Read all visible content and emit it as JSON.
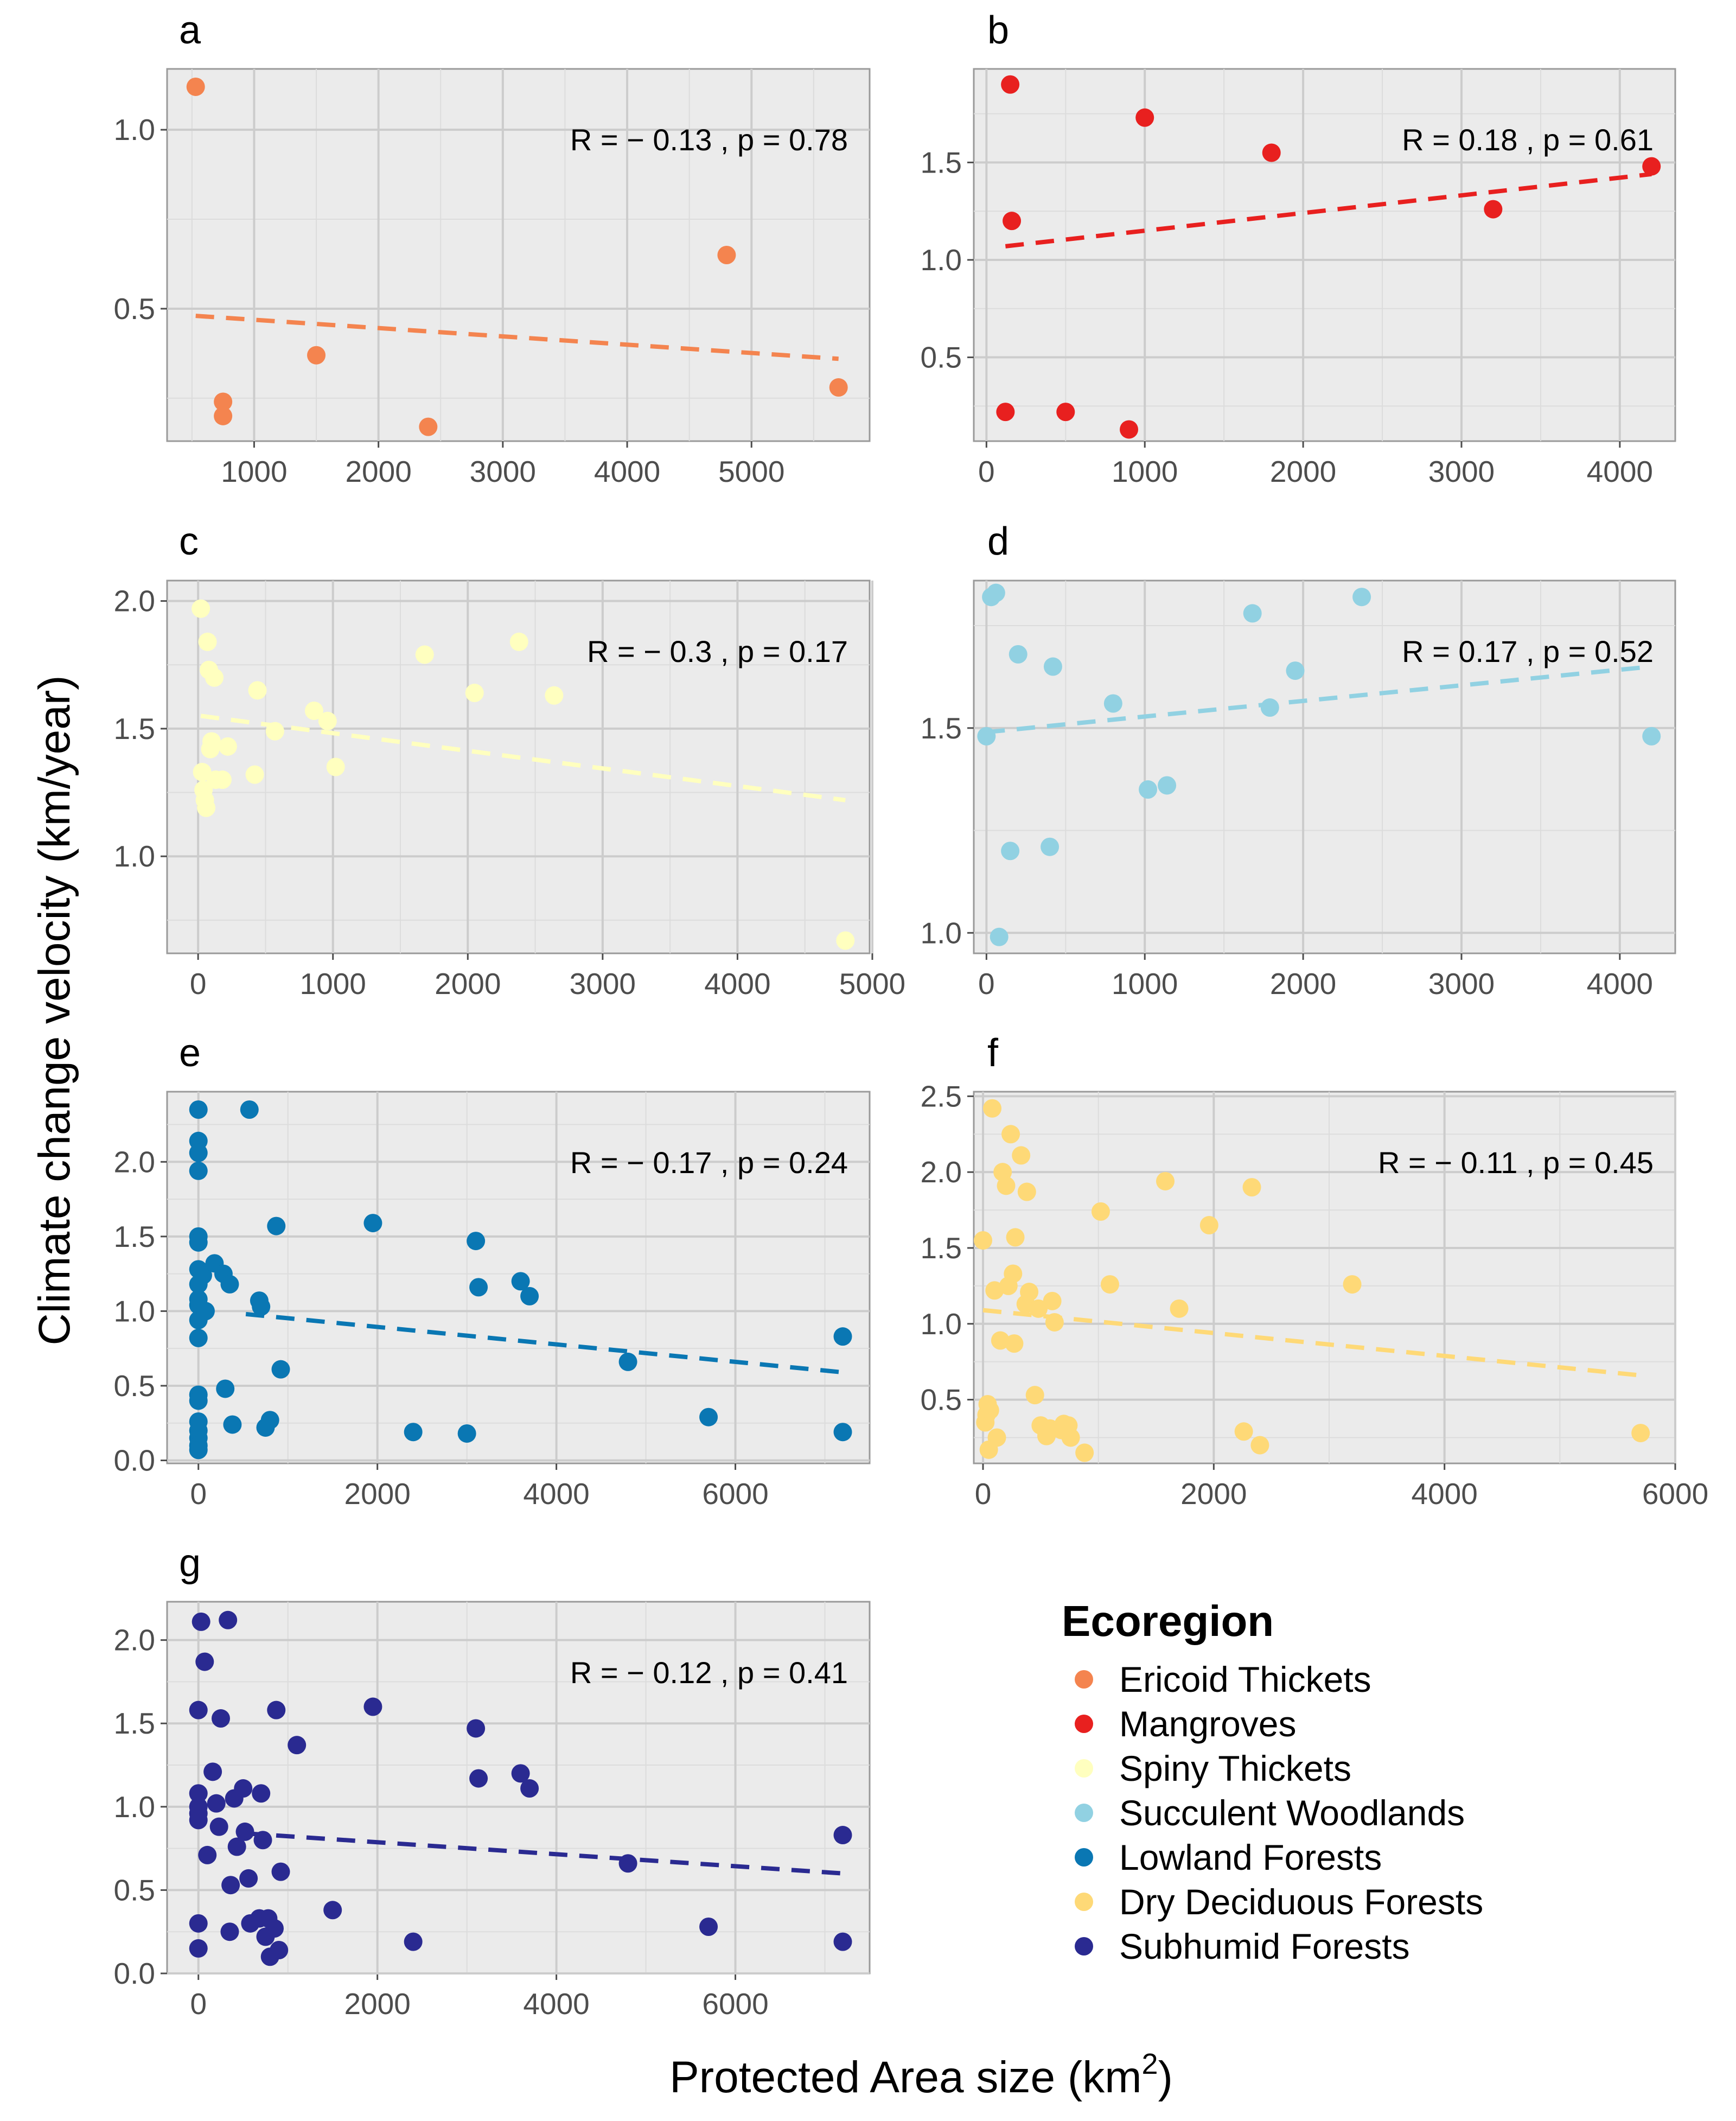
{
  "chart_data": {
    "type": "scatter",
    "xlabel": "Protected Area size (km",
    "xlabel_superscript": "2",
    "xlabel_suffix": ")",
    "ylabel": "Climate change velocity (km/year)",
    "legend": {
      "title": "Ecoregion",
      "entries": [
        {
          "label": "Ericoid Thickets",
          "color": "#F4844F"
        },
        {
          "label": "Mangroves",
          "color": "#E8201F"
        },
        {
          "label": "Spiny Thickets",
          "color": "#FFFFBF"
        },
        {
          "label": "Succulent Woodlands",
          "color": "#91D1E2"
        },
        {
          "label": "Lowland Forests",
          "color": "#0A77B3"
        },
        {
          "label": "Dry Deciduous Forests",
          "color": "#FED977"
        },
        {
          "label": "Subhumid Forests",
          "color": "#2A2A91"
        }
      ]
    },
    "panels": [
      {
        "id": "a",
        "series": "Ericoid Thickets",
        "color": "#F4844F",
        "xlim": [
          300,
          5950
        ],
        "ylim": [
          0.13,
          1.17
        ],
        "xticks": [
          1000,
          2000,
          3000,
          4000,
          5000
        ],
        "xtick_labels": [
          "1000",
          "2000",
          "3000",
          "4000",
          "5000"
        ],
        "yticks": [
          0.5,
          1.0
        ],
        "ytick_labels": [
          "0.5",
          "1.0"
        ],
        "x": [
          530,
          750,
          750,
          1500,
          2400,
          4800,
          5700
        ],
        "y": [
          1.12,
          0.24,
          0.2,
          0.37,
          0.17,
          0.65,
          0.28
        ],
        "fit": {
          "x": [
            530,
            5700
          ],
          "y": [
            0.48,
            0.36
          ]
        },
        "R": "R = − 0.13 , p = 0.78"
      },
      {
        "id": "b",
        "series": "Mangroves",
        "color": "#E8201F",
        "xlim": [
          -80,
          4350
        ],
        "ylim": [
          0.07,
          1.98
        ],
        "xticks": [
          0,
          1000,
          2000,
          3000,
          4000
        ],
        "xtick_labels": [
          "0",
          "1000",
          "2000",
          "3000",
          "4000"
        ],
        "yticks": [
          0.5,
          1.0,
          1.5
        ],
        "ytick_labels": [
          "0.5",
          "1.0",
          "1.5"
        ],
        "x": [
          150,
          160,
          120,
          500,
          900,
          1000,
          1800,
          3200,
          4200
        ],
        "y": [
          1.9,
          1.2,
          0.22,
          0.22,
          0.13,
          1.73,
          1.55,
          1.26,
          1.48
        ],
        "fit": {
          "x": [
            120,
            4200
          ],
          "y": [
            1.07,
            1.44
          ]
        },
        "R": "R = 0.18 , p = 0.61"
      },
      {
        "id": "c",
        "series": "Spiny Thickets",
        "color": "#FFFFBF",
        "xlim": [
          -230,
          4980
        ],
        "ylim": [
          0.62,
          2.08
        ],
        "xticks": [
          0,
          1000,
          2000,
          3000,
          4000,
          5000
        ],
        "xtick_labels": [
          "0",
          "1000",
          "2000",
          "3000",
          "4000",
          "5000"
        ],
        "yticks": [
          1.0,
          1.5,
          2.0
        ],
        "ytick_labels": [
          "1.0",
          "1.5",
          "2.0"
        ],
        "x": [
          20,
          30,
          40,
          50,
          60,
          70,
          80,
          90,
          100,
          120,
          130,
          180,
          220,
          420,
          440,
          570,
          860,
          960,
          1020,
          1680,
          2050,
          2380,
          2640,
          4800
        ],
        "y": [
          1.97,
          1.33,
          1.26,
          1.22,
          1.19,
          1.84,
          1.73,
          1.42,
          1.45,
          1.7,
          1.3,
          1.3,
          1.43,
          1.32,
          1.65,
          1.49,
          1.57,
          1.53,
          1.35,
          1.79,
          1.64,
          1.84,
          1.63,
          0.67
        ],
        "fit": {
          "x": [
            20,
            4800
          ],
          "y": [
            1.55,
            1.22
          ]
        },
        "R": "R = − 0.3 , p = 0.17"
      },
      {
        "id": "d",
        "series": "Succulent Woodlands",
        "color": "#91D1E2",
        "xlim": [
          -80,
          4350
        ],
        "ylim": [
          0.95,
          1.86
        ],
        "xticks": [
          0,
          1000,
          2000,
          3000,
          4000
        ],
        "xtick_labels": [
          "0",
          "1000",
          "2000",
          "3000",
          "4000"
        ],
        "yticks": [
          1.0,
          1.5
        ],
        "ytick_labels": [
          "1.0",
          "1.5"
        ],
        "x": [
          0,
          30,
          60,
          80,
          150,
          200,
          400,
          420,
          800,
          1020,
          1140,
          1680,
          1790,
          1950,
          2370,
          4200
        ],
        "y": [
          1.48,
          1.82,
          1.83,
          0.99,
          1.2,
          1.68,
          1.21,
          1.65,
          1.56,
          1.35,
          1.36,
          1.78,
          1.55,
          1.64,
          1.82,
          1.48
        ],
        "fit": {
          "x": [
            0,
            4200
          ],
          "y": [
            1.49,
            1.65
          ]
        },
        "R": "R = 0.17 , p = 0.52"
      },
      {
        "id": "e",
        "series": "Lowland Forests",
        "color": "#0A77B3",
        "xlim": [
          -350,
          7500
        ],
        "ylim": [
          -0.02,
          2.47
        ],
        "xticks": [
          0,
          2000,
          4000,
          6000
        ],
        "xtick_labels": [
          "0",
          "2000",
          "4000",
          "6000"
        ],
        "yticks": [
          0.0,
          0.5,
          1.0,
          1.5,
          2.0
        ],
        "ytick_labels": [
          "0.0",
          "0.5",
          "1.0",
          "1.5",
          "2.0"
        ],
        "x": [
          0,
          0,
          0,
          0,
          0,
          0,
          0,
          0,
          0,
          0,
          0,
          0,
          0,
          0,
          0,
          0,
          0,
          0,
          0,
          50,
          80,
          180,
          280,
          300,
          350,
          380,
          570,
          680,
          700,
          750,
          800,
          870,
          920,
          1950,
          2400,
          3000,
          3100,
          3130,
          3600,
          3700,
          4800,
          5700,
          7200,
          7200
        ],
        "y": [
          2.35,
          2.14,
          2.06,
          1.94,
          1.5,
          1.46,
          1.28,
          1.18,
          1.08,
          1.04,
          0.94,
          0.82,
          0.44,
          0.4,
          0.26,
          0.2,
          0.15,
          0.1,
          0.07,
          1.24,
          1.0,
          1.32,
          1.25,
          0.48,
          1.18,
          0.24,
          2.35,
          1.07,
          1.03,
          0.22,
          0.27,
          1.57,
          0.61,
          1.59,
          0.19,
          0.18,
          1.47,
          1.16,
          1.2,
          1.1,
          0.66,
          0.29,
          0.83,
          0.19
        ],
        "fit": {
          "x": [
            530,
            7200
          ],
          "y": [
            0.98,
            0.59
          ]
        },
        "R": "R = − 0.17 , p = 0.24"
      },
      {
        "id": "f",
        "series": "Dry Deciduous Forests",
        "color": "#FED977",
        "xlim": [
          -80,
          6000
        ],
        "ylim": [
          0.08,
          2.53
        ],
        "xticks": [
          0,
          2000,
          4000,
          6000
        ],
        "xtick_labels": [
          "0",
          "2000",
          "4000",
          "6000"
        ],
        "yticks": [
          0.5,
          1.0,
          1.5,
          2.0,
          2.5
        ],
        "ytick_labels": [
          "0.5",
          "1.0",
          "1.5",
          "2.0",
          "2.5"
        ],
        "x": [
          0,
          20,
          30,
          40,
          50,
          60,
          80,
          100,
          120,
          150,
          170,
          200,
          220,
          240,
          260,
          270,
          280,
          330,
          370,
          380,
          400,
          450,
          480,
          500,
          550,
          580,
          600,
          620,
          680,
          700,
          740,
          760,
          880,
          1020,
          1100,
          1580,
          1700,
          1960,
          2260,
          2330,
          2400,
          3200,
          5700
        ],
        "y": [
          1.55,
          0.35,
          0.4,
          0.47,
          0.17,
          0.43,
          2.42,
          1.22,
          0.25,
          0.89,
          2.0,
          1.91,
          1.25,
          2.25,
          1.33,
          0.87,
          1.57,
          2.11,
          1.13,
          1.87,
          1.21,
          0.53,
          1.1,
          0.33,
          0.26,
          0.31,
          1.15,
          1.01,
          0.3,
          0.34,
          0.33,
          0.25,
          0.15,
          1.74,
          1.26,
          1.94,
          1.1,
          1.65,
          0.29,
          1.9,
          0.2,
          1.26,
          0.28
        ],
        "fit": {
          "x": [
            0,
            5700
          ],
          "y": [
            1.09,
            0.66
          ]
        },
        "R": "R = − 0.11 , p = 0.45"
      },
      {
        "id": "g",
        "series": "Subhumid Forests",
        "color": "#2A2A91",
        "xlim": [
          -350,
          7500
        ],
        "ylim": [
          0.0,
          2.23
        ],
        "xticks": [
          0,
          2000,
          4000,
          6000
        ],
        "xtick_labels": [
          "0",
          "2000",
          "4000",
          "6000"
        ],
        "yticks": [
          0.0,
          0.5,
          1.0,
          1.5,
          2.0
        ],
        "ytick_labels": [
          "0.0",
          "0.5",
          "1.0",
          "1.5",
          "2.0"
        ],
        "x": [
          0,
          0,
          0,
          0,
          0,
          0,
          0,
          30,
          70,
          100,
          160,
          200,
          230,
          250,
          330,
          350,
          360,
          400,
          430,
          500,
          520,
          560,
          580,
          680,
          700,
          720,
          750,
          780,
          800,
          850,
          870,
          900,
          920,
          1100,
          1500,
          1950,
          2400,
          3100,
          3130,
          3600,
          3700,
          4800,
          5700,
          7200,
          7200
        ],
        "y": [
          1.58,
          1.08,
          1.0,
          0.96,
          0.92,
          0.3,
          0.15,
          2.11,
          1.87,
          0.71,
          1.21,
          1.02,
          0.88,
          1.53,
          2.12,
          0.25,
          0.53,
          1.05,
          0.76,
          1.11,
          0.85,
          0.57,
          0.3,
          0.33,
          1.08,
          0.8,
          0.22,
          0.33,
          0.1,
          0.27,
          1.58,
          0.14,
          0.61,
          1.37,
          0.38,
          1.6,
          0.19,
          1.47,
          1.17,
          1.2,
          1.11,
          0.66,
          0.28,
          0.83,
          0.19
        ],
        "fit": {
          "x": [
            530,
            7200
          ],
          "y": [
            0.84,
            0.6
          ]
        },
        "R": "R = − 0.12 , p = 0.41"
      }
    ]
  }
}
